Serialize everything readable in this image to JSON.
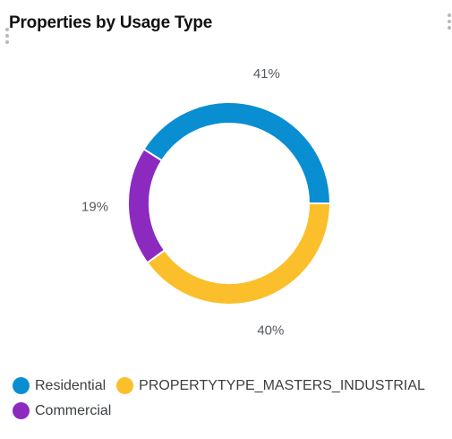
{
  "card": {
    "title": "Properties by Usage Type"
  },
  "icons": {
    "menu_left": "more-vertical-icon",
    "menu_right": "more-vertical-icon"
  },
  "chart_data": {
    "type": "pie",
    "variant": "donut",
    "title": "Properties by Usage Type",
    "legend_position": "bottom-left",
    "slices": [
      {
        "name": "Residential",
        "value": 41,
        "label": "41%",
        "color": "#0a8ed2"
      },
      {
        "name": "Commercial",
        "value": 19,
        "label": "19%",
        "color": "#8c2ac0"
      },
      {
        "name": "PROPERTYTYPE_MASTERS_INDUSTRIAL",
        "value": 40,
        "label": "40%",
        "color": "#fbbf2b"
      }
    ],
    "legend": [
      {
        "name": "Residential",
        "color": "#0a8ed2"
      },
      {
        "name": "PROPERTYTYPE_MASTERS_INDUSTRIAL",
        "color": "#fbbf2b"
      },
      {
        "name": "Commercial",
        "color": "#8c2ac0"
      }
    ]
  }
}
